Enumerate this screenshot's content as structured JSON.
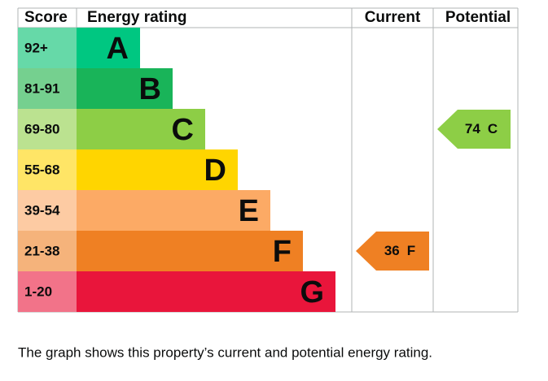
{
  "header": {
    "score": "Score",
    "rating": "Energy rating",
    "current": "Current",
    "potential": "Potential"
  },
  "bands": [
    {
      "range": "92+",
      "letter": "A",
      "color": "#00c781",
      "score_color": "#66d9a8"
    },
    {
      "range": "81-91",
      "letter": "B",
      "color": "#19b459",
      "score_color": "#75d08f"
    },
    {
      "range": "69-80",
      "letter": "C",
      "color": "#8dce46",
      "score_color": "#bbe290"
    },
    {
      "range": "55-68",
      "letter": "D",
      "color": "#ffd500",
      "score_color": "#ffe566"
    },
    {
      "range": "39-54",
      "letter": "E",
      "color": "#fcaa65",
      "score_color": "#fdcba3"
    },
    {
      "range": "21-38",
      "letter": "F",
      "color": "#ef8023",
      "score_color": "#f5b37b"
    },
    {
      "range": "1-20",
      "letter": "G",
      "color": "#e9153b",
      "score_color": "#f27389"
    }
  ],
  "current": {
    "score": 36,
    "band": "F"
  },
  "potential": {
    "score": 74,
    "band": "C"
  },
  "caption": "The graph shows this property’s current and potential energy rating."
}
